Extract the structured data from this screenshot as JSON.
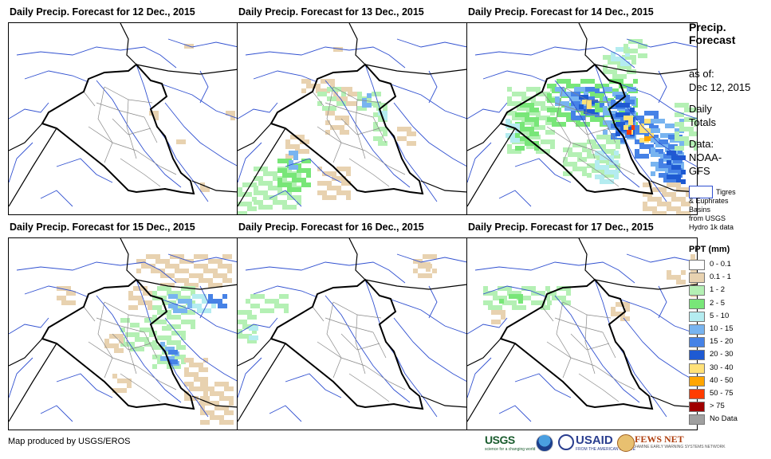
{
  "panels": [
    {
      "title": "Daily Precip. Forecast for 12 Dec., 2015"
    },
    {
      "title": "Daily Precip. Forecast for 13 Dec., 2015"
    },
    {
      "title": "Daily Precip. Forecast for 14 Dec., 2015"
    },
    {
      "title": "Daily Precip. Forecast for 15 Dec., 2015"
    },
    {
      "title": "Daily Precip. Forecast for 16 Dec., 2015"
    },
    {
      "title": "Daily Precip. Forecast for 17 Dec., 2015"
    }
  ],
  "legend": {
    "title_line1": "Precip.",
    "title_line2": "Forecast",
    "asof_label": "as of:",
    "asof_date": "Dec 12, 2015",
    "daily_line1": "Daily",
    "daily_line2": "Totals",
    "data_line1": "Data:",
    "data_line2": "NOAA-",
    "data_line3": "GFS",
    "basin_line1": "Tigres",
    "basin_line2": "& Euphrates",
    "basin_line3": "Basins",
    "basin_line4": "from USGS",
    "basin_line5": "Hydro 1k data",
    "ppt_title": "PPT (mm)",
    "classes": [
      {
        "label": "0 - 0.1",
        "color": "#ffffff"
      },
      {
        "label": "0.1 - 1",
        "color": "#e8d2b0"
      },
      {
        "label": "1 - 2",
        "color": "#b4f0b4"
      },
      {
        "label": "2 - 5",
        "color": "#78e678"
      },
      {
        "label": "5 - 10",
        "color": "#b4ecf0"
      },
      {
        "label": "10 - 15",
        "color": "#78b4f0"
      },
      {
        "label": "15 - 20",
        "color": "#4682e6"
      },
      {
        "label": "20 - 30",
        "color": "#1e5ad2"
      },
      {
        "label": "30 - 40",
        "color": "#ffe178"
      },
      {
        "label": "40 - 50",
        "color": "#ffa500"
      },
      {
        "label": "50 - 75",
        "color": "#ff3c00"
      },
      {
        "label": "> 75",
        "color": "#a00000"
      },
      {
        "label": "No Data",
        "color": "#a0a0a0"
      }
    ]
  },
  "footer": {
    "credit": "Map produced by USGS/EROS",
    "logo_usgs": "USGS",
    "logo_usgs_tag": "science for a changing world",
    "logo_usaid": "USAID",
    "logo_usaid_tag": "FROM THE AMERICAN PEOPLE",
    "logo_fews": "FEWS NET",
    "logo_fews_tag": "FAMINE EARLY WARNING SYSTEMS NETWORK"
  }
}
